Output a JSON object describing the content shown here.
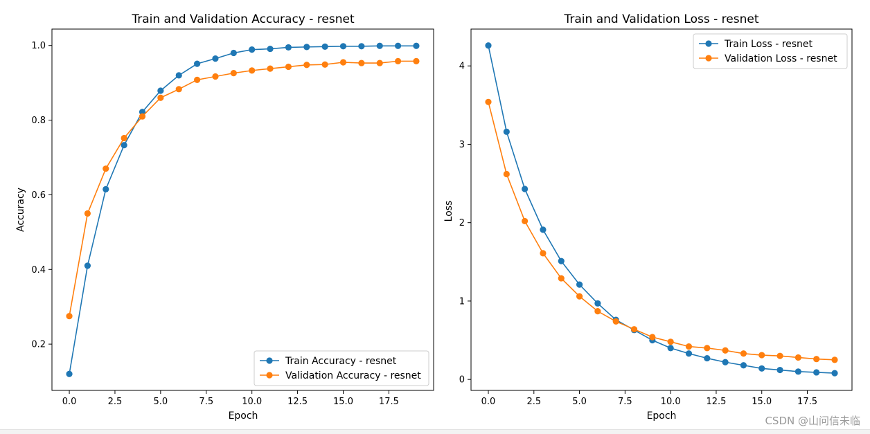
{
  "chart_data": [
    {
      "type": "line",
      "title": "Train and Validation Accuracy - resnet",
      "xlabel": "Epoch",
      "ylabel": "Accuracy",
      "xlim": [
        -0.95,
        19.95
      ],
      "ylim": [
        0.076,
        1.044
      ],
      "xticks": [
        0.0,
        2.5,
        5.0,
        7.5,
        10.0,
        12.5,
        15.0,
        17.5
      ],
      "xtick_labels": [
        "0.0",
        "2.5",
        "5.0",
        "7.5",
        "10.0",
        "12.5",
        "15.0",
        "17.5"
      ],
      "yticks": [
        0.2,
        0.4,
        0.6,
        0.8,
        1.0
      ],
      "ytick_labels": [
        "0.2",
        "0.4",
        "0.6",
        "0.8",
        "1.0"
      ],
      "legend_position": "lower-right",
      "x": [
        0,
        1,
        2,
        3,
        4,
        5,
        6,
        7,
        8,
        9,
        10,
        11,
        12,
        13,
        14,
        15,
        16,
        17,
        18,
        19
      ],
      "series": [
        {
          "name": "Train Accuracy - resnet",
          "color": "#1f77b4",
          "values": [
            0.12,
            0.41,
            0.615,
            0.733,
            0.822,
            0.879,
            0.92,
            0.951,
            0.965,
            0.98,
            0.989,
            0.991,
            0.995,
            0.996,
            0.997,
            0.998,
            0.998,
            0.999,
            0.999,
            0.999
          ]
        },
        {
          "name": "Validation Accuracy - resnet",
          "color": "#ff7f0e",
          "values": [
            0.275,
            0.55,
            0.67,
            0.752,
            0.81,
            0.86,
            0.883,
            0.908,
            0.917,
            0.926,
            0.933,
            0.938,
            0.943,
            0.948,
            0.949,
            0.955,
            0.953,
            0.953,
            0.958,
            0.958
          ]
        }
      ]
    },
    {
      "type": "line",
      "title": "Train and Validation Loss - resnet",
      "xlabel": "Epoch",
      "ylabel": "Loss",
      "xlim": [
        -0.95,
        19.95
      ],
      "ylim": [
        -0.14,
        4.47
      ],
      "xticks": [
        0.0,
        2.5,
        5.0,
        7.5,
        10.0,
        12.5,
        15.0,
        17.5
      ],
      "xtick_labels": [
        "0.0",
        "2.5",
        "5.0",
        "7.5",
        "10.0",
        "12.5",
        "15.0",
        "17.5"
      ],
      "yticks": [
        0,
        1,
        2,
        3,
        4
      ],
      "ytick_labels": [
        "0",
        "1",
        "2",
        "3",
        "4"
      ],
      "legend_position": "upper-right",
      "x": [
        0,
        1,
        2,
        3,
        4,
        5,
        6,
        7,
        8,
        9,
        10,
        11,
        12,
        13,
        14,
        15,
        16,
        17,
        18,
        19
      ],
      "series": [
        {
          "name": "Train Loss - resnet",
          "color": "#1f77b4",
          "values": [
            4.26,
            3.16,
            2.43,
            1.91,
            1.51,
            1.21,
            0.97,
            0.76,
            0.63,
            0.5,
            0.4,
            0.33,
            0.27,
            0.22,
            0.18,
            0.14,
            0.12,
            0.1,
            0.09,
            0.08
          ]
        },
        {
          "name": "Validation Loss - resnet",
          "color": "#ff7f0e",
          "values": [
            3.54,
            2.62,
            2.02,
            1.61,
            1.29,
            1.06,
            0.87,
            0.74,
            0.64,
            0.54,
            0.48,
            0.42,
            0.4,
            0.37,
            0.33,
            0.31,
            0.3,
            0.28,
            0.26,
            0.25
          ]
        }
      ]
    }
  ],
  "watermark": "CSDN @山问信未临"
}
